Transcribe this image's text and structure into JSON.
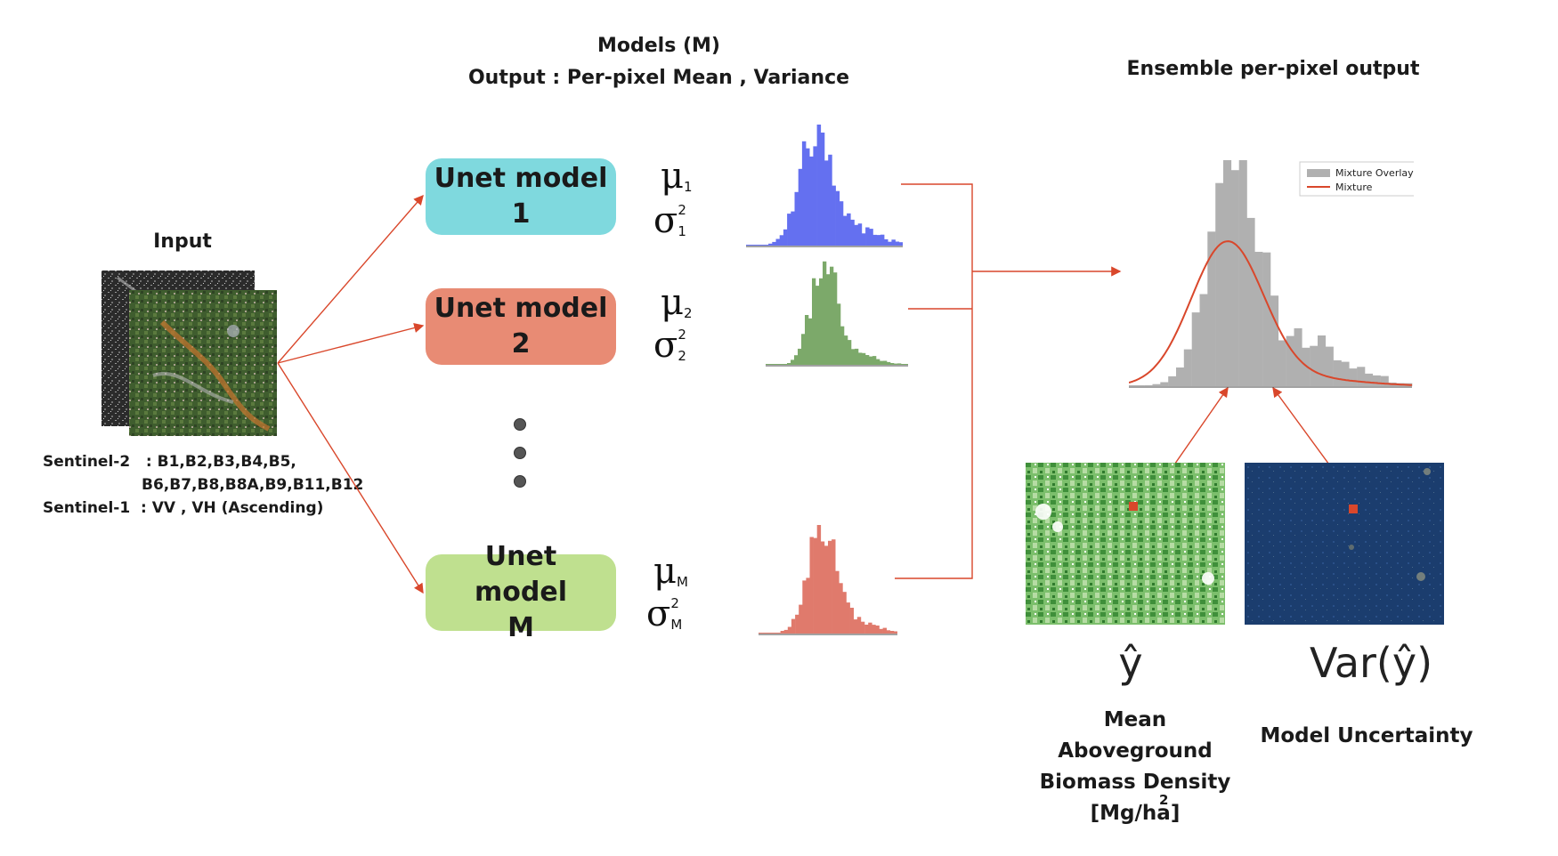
{
  "header": {
    "models_title": "Models (M)",
    "models_subtitle": "Output : Per-pixel Mean , Variance",
    "ensemble_title": "Ensemble per-pixel output"
  },
  "input": {
    "label": "Input",
    "sentinel2_label": "Sentinel-2   : B1,B2,B3,B4,B5,",
    "sentinel2_label_cont": "B6,B7,B8,B8A,B9,B11,B12",
    "sentinel1_label": "Sentinel-1  : VV , VH (Ascending)"
  },
  "models": [
    {
      "label": "Unet model 1",
      "mu_sub": "1",
      "sigma_sub": "1",
      "sigma_sup": "2",
      "color": "#7fd9de"
    },
    {
      "label": "Unet model 2",
      "mu_sub": "2",
      "sigma_sub": "2",
      "sigma_sup": "2",
      "color": "#e88b74"
    },
    {
      "label": "Unet model M",
      "mu_sub": "M",
      "sigma_sub": "M",
      "sigma_sup": "2",
      "color": "#bfe08f"
    }
  ],
  "symbols": {
    "mu": "μ",
    "sigma": "σ"
  },
  "histogram_colors": {
    "model1": "#6470f0",
    "model2": "#7ca96a",
    "modelM": "#e07a6c",
    "mixture_bars": "#b0b0b0",
    "mixture_line": "#d9472b",
    "arrow": "#d9472b"
  },
  "legend": {
    "item1": "Mixture Overlay",
    "item2": "Mixture"
  },
  "outputs": {
    "mean_symbol": "ŷ",
    "var_symbol": "Var(ŷ)",
    "mean_caption_1": "Mean",
    "mean_caption_2": "Aboveground",
    "mean_caption_3": "Biomass Density",
    "mean_caption_4": "[Mg/ha]",
    "mean_caption_sup": "2",
    "var_caption": "Model Uncertainty"
  }
}
